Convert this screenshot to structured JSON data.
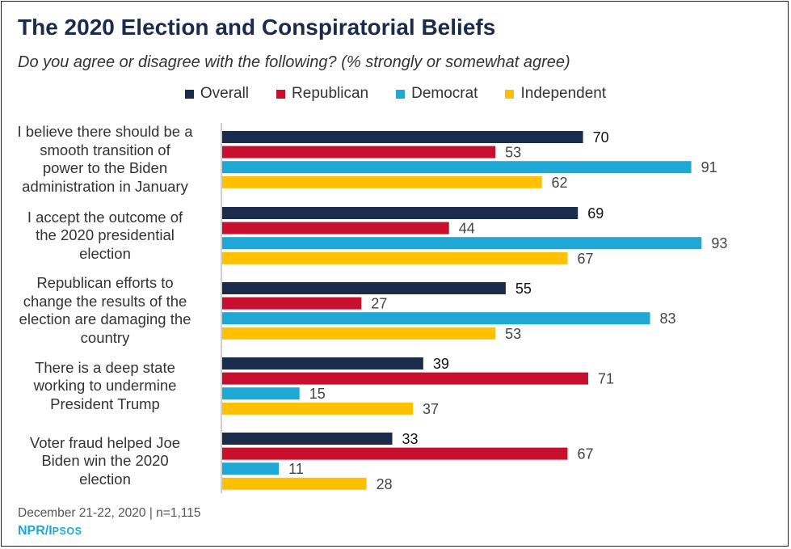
{
  "header": {
    "title": "The 2020 Election and Conspiratorial Beliefs",
    "subtitle": "Do you agree or disagree with the following? (% strongly or somewhat agree)"
  },
  "colors": {
    "Overall": "#1a2b4c",
    "Republican": "#c8102e",
    "Democrat": "#1fa7d6",
    "Independent": "#ffc000"
  },
  "chart_data": {
    "type": "bar",
    "orientation": "horizontal",
    "categories": [
      "I believe there should be a smooth transition of power to the Biden administration in January",
      "I accept the outcome of the 2020 presidential election",
      "Republican efforts to change the results of the election are damaging the country",
      "There is a deep state working to undermine President Trump",
      "Voter fraud helped Joe Biden win the 2020 election"
    ],
    "category_lines": [
      [
        "I believe there should be a",
        "smooth transition of",
        "power to the Biden",
        "administration in January"
      ],
      [
        "I accept the outcome of",
        "the 2020 presidential",
        "election"
      ],
      [
        "Republican efforts to",
        "change the results of the",
        "election are damaging the",
        "country"
      ],
      [
        "There is a deep state",
        "working to undermine",
        "President Trump"
      ],
      [
        "Voter fraud helped Joe",
        "Biden win the 2020",
        "election"
      ]
    ],
    "series": [
      {
        "name": "Overall",
        "values": [
          70,
          69,
          55,
          39,
          33
        ]
      },
      {
        "name": "Republican",
        "values": [
          53,
          44,
          27,
          71,
          67
        ]
      },
      {
        "name": "Democrat",
        "values": [
          91,
          93,
          83,
          15,
          11
        ]
      },
      {
        "name": "Independent",
        "values": [
          62,
          67,
          53,
          37,
          28
        ]
      }
    ],
    "xlim": [
      0,
      100
    ],
    "grid": false,
    "legend_position": "top-center",
    "data_labels": true
  },
  "footer": {
    "date_line": "December 21-22, 2020 | n=1,115",
    "source_main": "NPR/I",
    "source_small": "PSOS"
  }
}
